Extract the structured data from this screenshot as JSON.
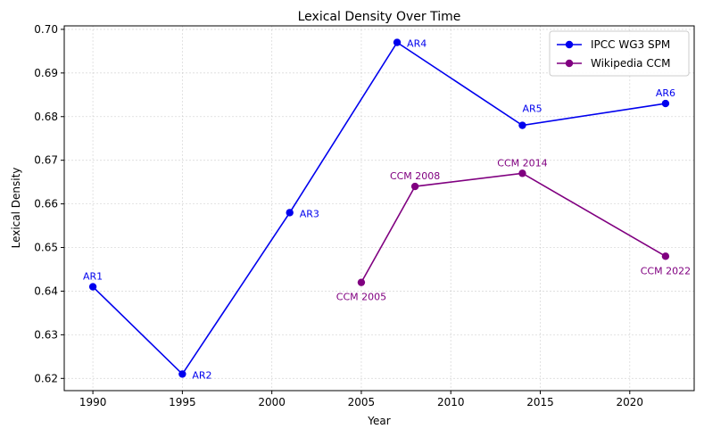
{
  "chart_data": {
    "type": "line",
    "title": "Lexical Density Over Time",
    "xlabel": "Year",
    "ylabel": "Lexical Density",
    "xlim": [
      1988.4,
      2023.6
    ],
    "ylim": [
      0.6172,
      0.7008
    ],
    "xticks": [
      1990,
      1995,
      2000,
      2005,
      2010,
      2015,
      2020
    ],
    "yticks": [
      0.62,
      0.63,
      0.64,
      0.65,
      0.66,
      0.67,
      0.68,
      0.69,
      0.7
    ],
    "ytick_labels": [
      "0.62",
      "0.63",
      "0.64",
      "0.65",
      "0.66",
      "0.67",
      "0.68",
      "0.69",
      "0.70"
    ],
    "grid": true,
    "legend_position": "top-right",
    "series": [
      {
        "name": "IPCC WG3 SPM",
        "color": "#0000ee",
        "points": [
          {
            "x": 1990,
            "y": 0.641,
            "label": "AR1",
            "label_pos": "above"
          },
          {
            "x": 1995,
            "y": 0.621,
            "label": "AR2",
            "label_pos": "right"
          },
          {
            "x": 2001,
            "y": 0.658,
            "label": "AR3",
            "label_pos": "right"
          },
          {
            "x": 2007,
            "y": 0.697,
            "label": "AR4",
            "label_pos": "right"
          },
          {
            "x": 2014,
            "y": 0.678,
            "label": "AR5",
            "label_pos": "above-right"
          },
          {
            "x": 2022,
            "y": 0.683,
            "label": "AR6",
            "label_pos": "above"
          }
        ]
      },
      {
        "name": "Wikipedia CCM",
        "color": "#800080",
        "points": [
          {
            "x": 2005,
            "y": 0.642,
            "label": "CCM 2005",
            "label_pos": "below"
          },
          {
            "x": 2008,
            "y": 0.664,
            "label": "CCM 2008",
            "label_pos": "above"
          },
          {
            "x": 2014,
            "y": 0.667,
            "label": "CCM 2014",
            "label_pos": "above"
          },
          {
            "x": 2022,
            "y": 0.648,
            "label": "CCM 2022",
            "label_pos": "below"
          }
        ]
      }
    ]
  }
}
